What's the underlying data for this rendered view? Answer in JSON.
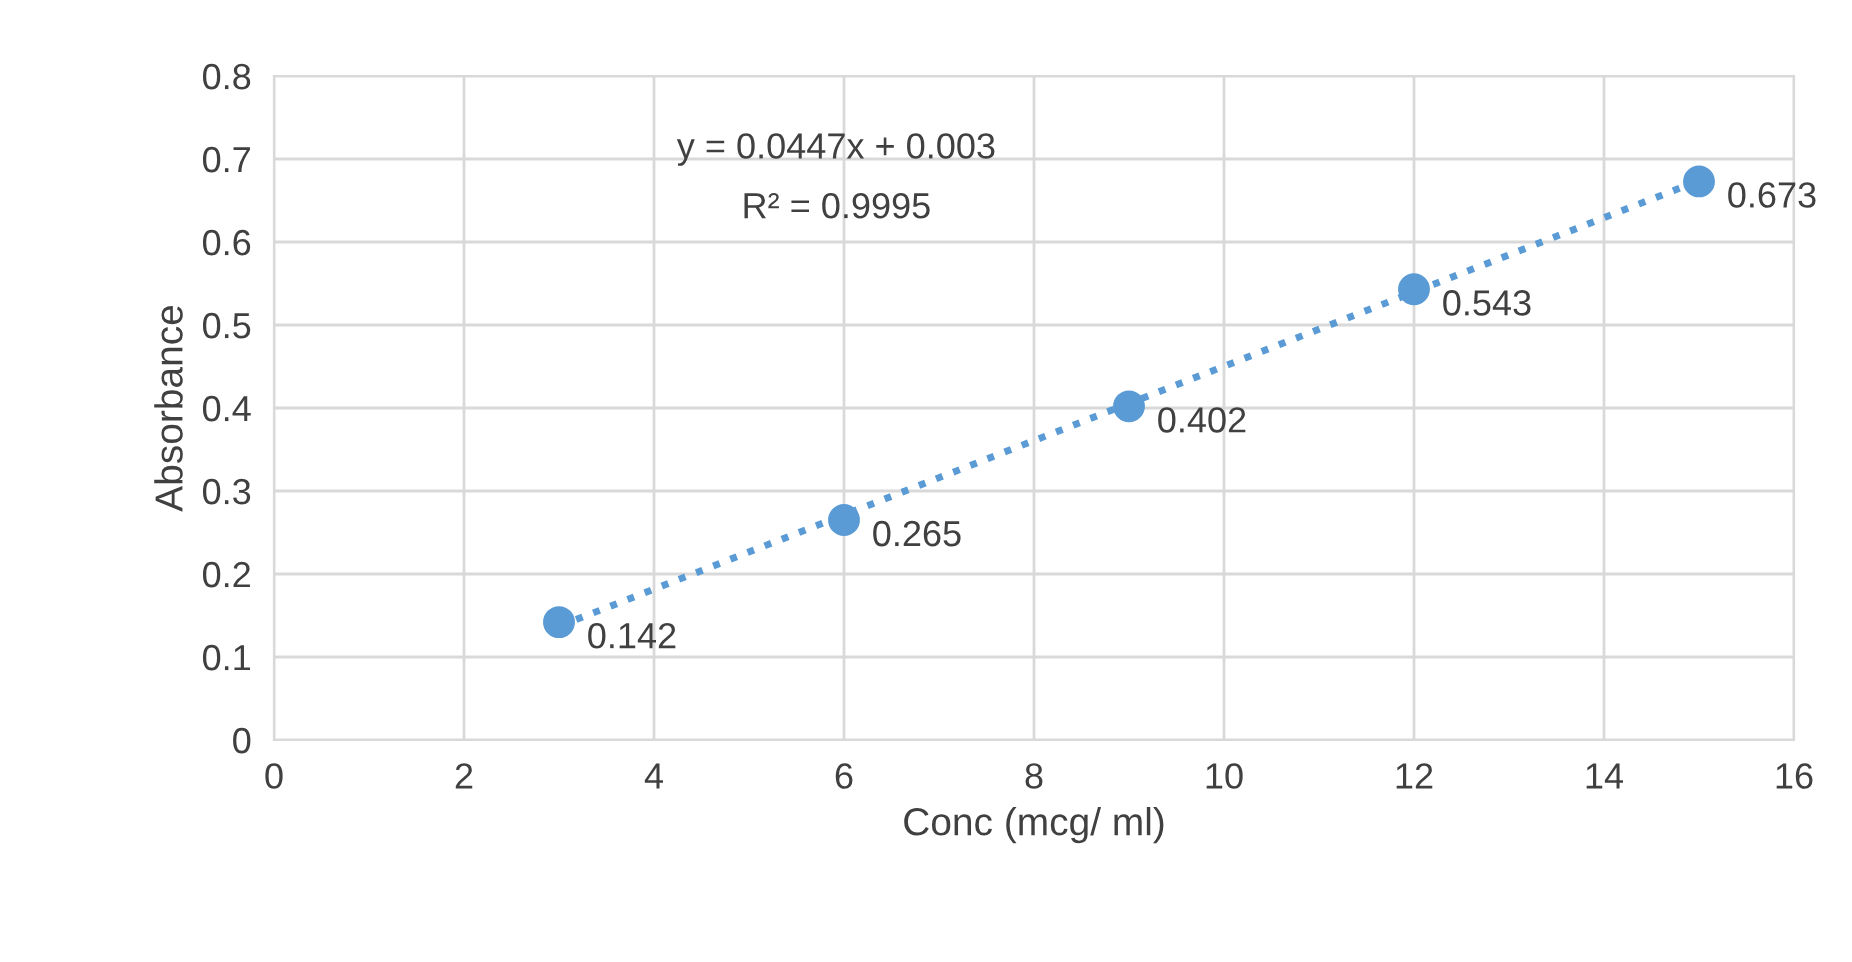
{
  "chart_data": {
    "type": "scatter",
    "xlabel": "Conc (mcg/ ml)",
    "ylabel": "Absorbance",
    "xlim": [
      0,
      16
    ],
    "xticks": [
      0,
      2,
      4,
      6,
      8,
      10,
      12,
      14,
      16
    ],
    "ylim": [
      0,
      0.8
    ],
    "yticks": [
      0,
      0.1,
      0.2,
      0.3,
      0.4,
      0.5,
      0.6,
      0.7,
      0.8
    ],
    "grid": true,
    "legend": false,
    "series": [
      {
        "color": "#5b9bd5",
        "marker": "circle",
        "x": [
          3,
          6,
          9,
          12,
          15
        ],
        "values": [
          0.142,
          0.265,
          0.402,
          0.543,
          0.673
        ],
        "value_labels": [
          "0.142",
          "0.265",
          "0.402",
          "0.543",
          "0.673"
        ]
      },
      {
        "type": "line",
        "color": "#5b9bd5",
        "line_style": "dotted",
        "x": [
          3,
          15
        ],
        "values": [
          0.137,
          0.674
        ]
      }
    ],
    "annotations": [
      "y = 0.0447x + 0.003",
      "R² = 0.9995"
    ]
  }
}
